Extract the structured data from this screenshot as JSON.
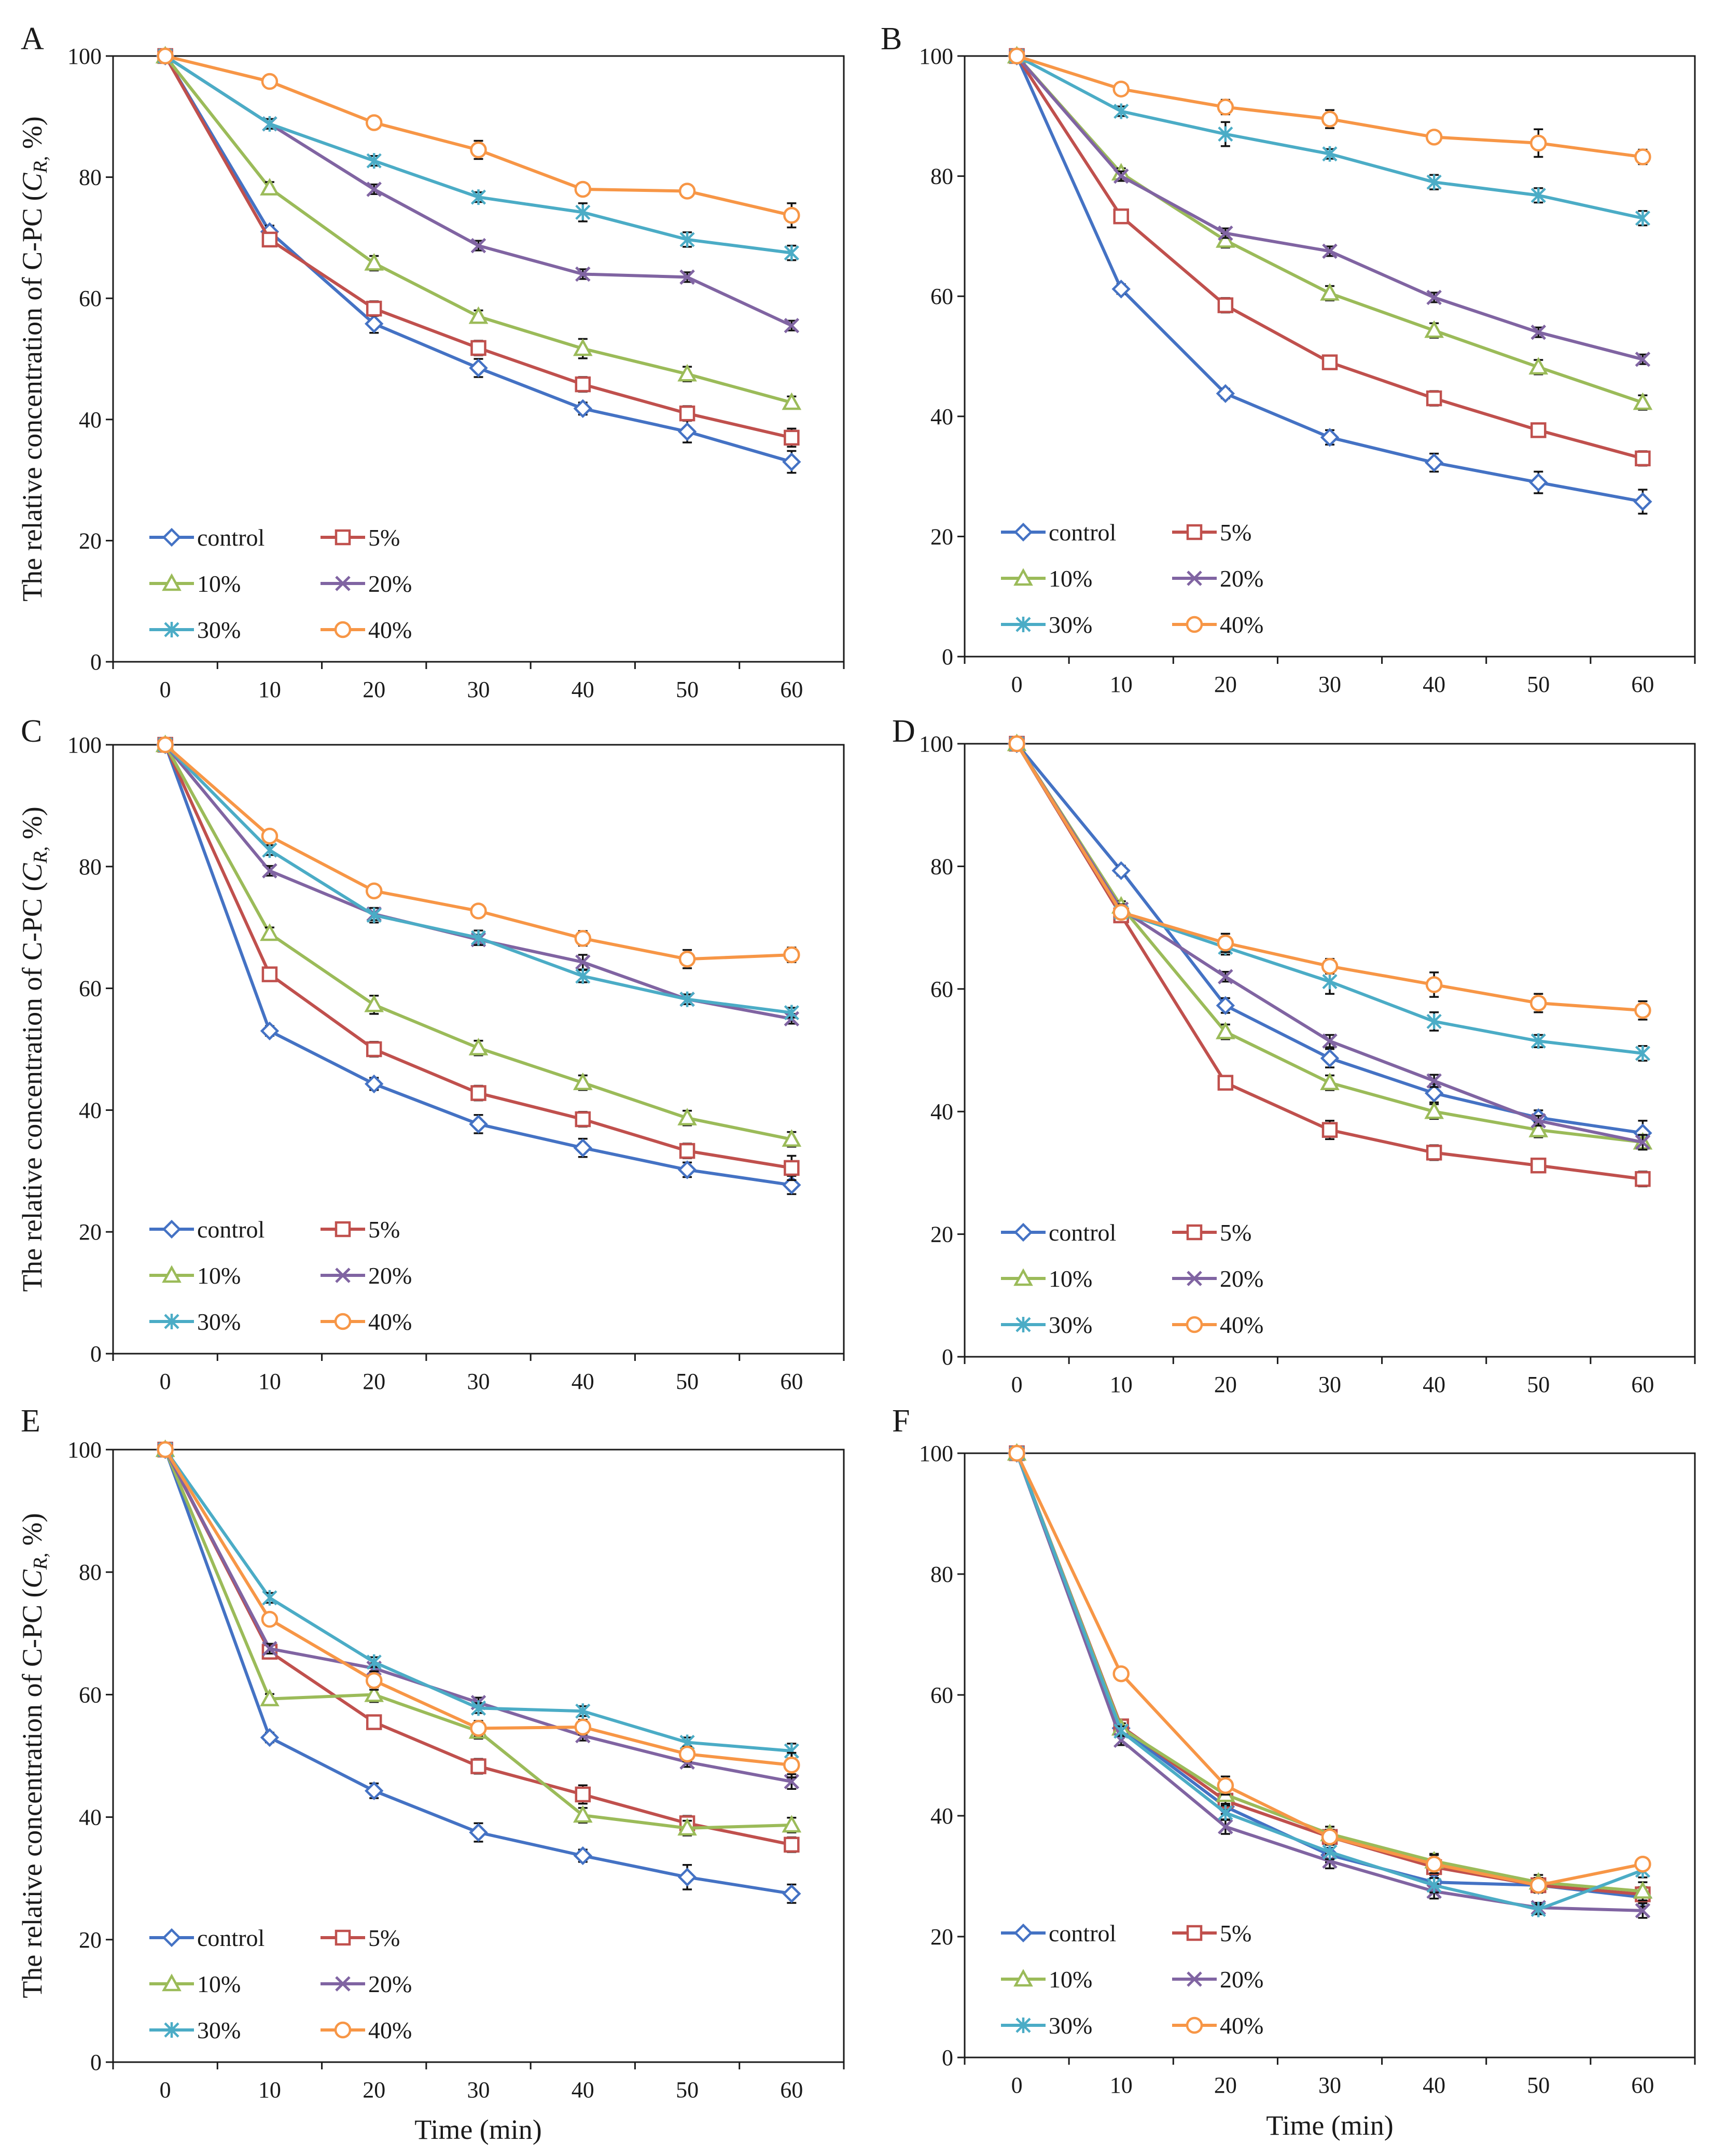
{
  "colors": {
    "control": "#4472c4",
    "p5": "#c0504d",
    "p10": "#9bbb59",
    "p20": "#8064a2",
    "p30": "#4bacc6",
    "p40": "#f79646",
    "axis": "#1a1a1a",
    "error_bar": "#111111"
  },
  "figure": {
    "shared_ylabel": "The relative concentration of C-PC (",
    "shared_ylabel_italic": "C",
    "shared_ylabel_sub": "R,",
    "shared_ylabel_tail": " %)",
    "shared_xlabel": "Time (min)"
  },
  "chart_data": [
    {
      "panel": "A",
      "type": "line",
      "x": [
        0,
        10,
        20,
        30,
        40,
        50,
        60
      ],
      "ylim": [
        0,
        100
      ],
      "yticks": [
        0,
        20,
        40,
        60,
        80,
        100
      ],
      "xlabel": "",
      "ylabel": "The relative concentration of C-PC (C R, %)",
      "legend": "bottom-left",
      "grid": false,
      "series": [
        {
          "key": "control",
          "name": "control",
          "marker": "diamond",
          "values": [
            100,
            71,
            55.8,
            48.5,
            41.8,
            38,
            33
          ],
          "errors": [
            0,
            1,
            1.5,
            1.5,
            1,
            1.8,
            1.8
          ]
        },
        {
          "key": "p5",
          "name": "5%",
          "marker": "square",
          "values": [
            100,
            69.7,
            58.3,
            51.8,
            45.8,
            41,
            37
          ],
          "errors": [
            0,
            1,
            1.2,
            1.2,
            1.2,
            1.2,
            1.5
          ]
        },
        {
          "key": "p10",
          "name": "10%",
          "marker": "triangle",
          "values": [
            100,
            78.2,
            65.8,
            57,
            51.7,
            47.5,
            42.8
          ],
          "errors": [
            0,
            1,
            1.2,
            1,
            1.6,
            1.2,
            1
          ]
        },
        {
          "key": "p20",
          "name": "20%",
          "marker": "x",
          "values": [
            100,
            88.8,
            78,
            68.7,
            64,
            63.5,
            55.5
          ],
          "errors": [
            0,
            0.8,
            0.8,
            0.8,
            0.8,
            0.8,
            0.8
          ]
        },
        {
          "key": "p30",
          "name": "30%",
          "marker": "asterisk",
          "values": [
            100,
            88.8,
            82.7,
            76.7,
            74.2,
            69.7,
            67.5
          ],
          "errors": [
            0,
            0.8,
            0.8,
            0.8,
            1.5,
            1.2,
            1.2
          ]
        },
        {
          "key": "p40",
          "name": "40%",
          "marker": "circle",
          "values": [
            100,
            95.8,
            89,
            84.5,
            78,
            77.7,
            73.7
          ],
          "errors": [
            0,
            0.8,
            0.8,
            1.5,
            0.8,
            0.8,
            2
          ]
        }
      ]
    },
    {
      "panel": "B",
      "type": "line",
      "x": [
        0,
        10,
        20,
        30,
        40,
        50,
        60
      ],
      "ylim": [
        0,
        100
      ],
      "yticks": [
        0,
        20,
        40,
        60,
        80,
        100
      ],
      "xlabel": "",
      "ylabel": "",
      "legend": "bottom-left",
      "grid": false,
      "series": [
        {
          "key": "control",
          "name": "control",
          "marker": "diamond",
          "values": [
            100,
            61.2,
            43.8,
            36.5,
            32.3,
            29,
            25.8
          ],
          "errors": [
            0,
            0.8,
            0.8,
            1.2,
            1.5,
            1.8,
            2
          ]
        },
        {
          "key": "p5",
          "name": "5%",
          "marker": "square",
          "values": [
            100,
            73.3,
            58.5,
            49,
            43,
            37.7,
            33
          ],
          "errors": [
            0,
            0.8,
            1.2,
            1,
            1.2,
            1,
            1.2
          ]
        },
        {
          "key": "p10",
          "name": "10%",
          "marker": "triangle",
          "values": [
            100,
            80.5,
            69.3,
            60.5,
            54.3,
            48.2,
            42.3
          ],
          "errors": [
            0,
            0.8,
            1.2,
            1.2,
            1.2,
            1.2,
            1.2
          ]
        },
        {
          "key": "p20",
          "name": "20%",
          "marker": "x",
          "values": [
            100,
            80,
            70.5,
            67.5,
            59.8,
            54,
            49.5
          ],
          "errors": [
            0,
            0.8,
            0.8,
            0.8,
            0.8,
            0.8,
            0.8
          ]
        },
        {
          "key": "p30",
          "name": "30%",
          "marker": "asterisk",
          "values": [
            100,
            90.8,
            87,
            83.7,
            79,
            76.8,
            73
          ],
          "errors": [
            0,
            0.8,
            2,
            0.8,
            1.2,
            1.2,
            1.2
          ]
        },
        {
          "key": "p40",
          "name": "40%",
          "marker": "circle",
          "values": [
            100,
            94.5,
            91.5,
            89.5,
            86.5,
            85.5,
            83.2
          ],
          "errors": [
            0,
            0.8,
            1.2,
            1.5,
            0.8,
            2.3,
            1.2
          ]
        }
      ]
    },
    {
      "panel": "C",
      "type": "line",
      "x": [
        0,
        10,
        20,
        30,
        40,
        50,
        60
      ],
      "ylim": [
        0,
        100
      ],
      "yticks": [
        0,
        20,
        40,
        60,
        80,
        100
      ],
      "xlabel": "",
      "ylabel": "The relative concentration of C-PC (C R, %)",
      "legend": "bottom-left",
      "grid": false,
      "series": [
        {
          "key": "control",
          "name": "control",
          "marker": "diamond",
          "values": [
            100,
            53,
            44.3,
            37.7,
            33.8,
            30.2,
            27.7
          ],
          "errors": [
            0,
            0.8,
            1,
            1.5,
            1.5,
            1.2,
            1.5
          ]
        },
        {
          "key": "p5",
          "name": "5%",
          "marker": "square",
          "values": [
            100,
            62.3,
            50,
            42.8,
            38.5,
            33.3,
            30.5
          ],
          "errors": [
            0,
            1,
            1.2,
            1.2,
            1.2,
            1.2,
            2
          ]
        },
        {
          "key": "p10",
          "name": "10%",
          "marker": "triangle",
          "values": [
            100,
            69,
            57.3,
            50.2,
            44.5,
            38.7,
            35.2
          ],
          "errors": [
            0,
            1,
            1.5,
            1.2,
            1.2,
            1.2,
            1.2
          ]
        },
        {
          "key": "p20",
          "name": "20%",
          "marker": "x",
          "values": [
            100,
            79.3,
            72.2,
            68,
            64.3,
            58.2,
            55
          ],
          "errors": [
            0,
            0.8,
            1,
            0.8,
            1.2,
            0.8,
            0.8
          ]
        },
        {
          "key": "p30",
          "name": "30%",
          "marker": "asterisk",
          "values": [
            100,
            82.7,
            72,
            68.3,
            62,
            58.2,
            56
          ],
          "errors": [
            0,
            0.8,
            1.2,
            1.2,
            1,
            0.8,
            0.8
          ]
        },
        {
          "key": "p40",
          "name": "40%",
          "marker": "circle",
          "values": [
            100,
            85,
            76,
            72.7,
            68.2,
            64.8,
            65.5
          ],
          "errors": [
            0,
            0.8,
            0.8,
            0.8,
            1.2,
            1.5,
            1.2
          ]
        }
      ]
    },
    {
      "panel": "D",
      "type": "line",
      "x": [
        0,
        10,
        20,
        30,
        40,
        50,
        60
      ],
      "ylim": [
        0,
        100
      ],
      "yticks": [
        0,
        20,
        40,
        60,
        80,
        100
      ],
      "xlabel": "",
      "ylabel": "",
      "legend": "bottom-left",
      "grid": false,
      "series": [
        {
          "key": "control",
          "name": "control",
          "marker": "diamond",
          "values": [
            100,
            79.3,
            57.3,
            48.7,
            43,
            39,
            36.5
          ],
          "errors": [
            0,
            0.8,
            1.2,
            1.5,
            1.5,
            1.2,
            2
          ]
        },
        {
          "key": "p5",
          "name": "5%",
          "marker": "square",
          "values": [
            100,
            72,
            44.7,
            37,
            33.3,
            31.2,
            29
          ],
          "errors": [
            0,
            0.8,
            1,
            1.5,
            1.2,
            1,
            1.2
          ]
        },
        {
          "key": "p10",
          "name": "10%",
          "marker": "triangle",
          "values": [
            100,
            73.5,
            53,
            44.7,
            40,
            37,
            35
          ],
          "errors": [
            0,
            0.8,
            1.2,
            1.2,
            1.2,
            1.2,
            1.2
          ]
        },
        {
          "key": "p20",
          "name": "20%",
          "marker": "x",
          "values": [
            100,
            73,
            62,
            51.5,
            45,
            38.5,
            35
          ],
          "errors": [
            0,
            0.8,
            0.8,
            1,
            1,
            0.8,
            1.2
          ]
        },
        {
          "key": "p30",
          "name": "30%",
          "marker": "asterisk",
          "values": [
            100,
            72.5,
            66.8,
            61.2,
            54.7,
            51.5,
            49.5
          ],
          "errors": [
            0,
            1,
            1.2,
            2,
            1.5,
            1,
            1.2
          ]
        },
        {
          "key": "p40",
          "name": "40%",
          "marker": "circle",
          "values": [
            100,
            72.5,
            67.5,
            63.7,
            60.7,
            57.7,
            56.5
          ],
          "errors": [
            0,
            0.8,
            1.5,
            1.2,
            2,
            1.5,
            1.5
          ]
        }
      ]
    },
    {
      "panel": "E",
      "type": "line",
      "x": [
        0,
        10,
        20,
        30,
        40,
        50,
        60
      ],
      "ylim": [
        0,
        100
      ],
      "yticks": [
        0,
        20,
        40,
        60,
        80,
        100
      ],
      "xlabel": "Time (min)",
      "ylabel": "The relative concentration of C-PC (C R, %)",
      "legend": "bottom-left",
      "grid": false,
      "series": [
        {
          "key": "control",
          "name": "control",
          "marker": "diamond",
          "values": [
            100,
            53,
            44.3,
            37.5,
            33.7,
            30.2,
            27.5
          ],
          "errors": [
            0,
            0.8,
            1.2,
            1.5,
            1,
            2,
            1.5
          ]
        },
        {
          "key": "p5",
          "name": "5%",
          "marker": "square",
          "values": [
            100,
            67,
            55.5,
            48.3,
            43.7,
            39,
            35.5
          ],
          "errors": [
            0,
            0.8,
            1,
            1.2,
            1.5,
            1.2,
            1.2
          ]
        },
        {
          "key": "p10",
          "name": "10%",
          "marker": "triangle",
          "values": [
            100,
            59.3,
            60,
            54,
            40.3,
            38.2,
            38.7
          ],
          "errors": [
            0,
            0.8,
            1.2,
            1.2,
            1.2,
            1.2,
            1.2
          ]
        },
        {
          "key": "p20",
          "name": "20%",
          "marker": "x",
          "values": [
            100,
            67.5,
            64.3,
            58.7,
            53.3,
            49,
            45.8
          ],
          "errors": [
            0,
            0.8,
            0.8,
            0.8,
            0.8,
            0.8,
            1.2
          ]
        },
        {
          "key": "p30",
          "name": "30%",
          "marker": "asterisk",
          "values": [
            100,
            75.8,
            65.3,
            57.8,
            57.3,
            52.2,
            50.8
          ],
          "errors": [
            0,
            0.8,
            0.8,
            0.8,
            0.8,
            0.8,
            1.2
          ]
        },
        {
          "key": "p40",
          "name": "40%",
          "marker": "circle",
          "values": [
            100,
            72.3,
            62.3,
            54.5,
            54.7,
            50.3,
            48.5
          ],
          "errors": [
            0,
            0.8,
            1.5,
            1.2,
            1.2,
            1.2,
            2
          ]
        }
      ]
    },
    {
      "panel": "F",
      "type": "line",
      "x": [
        0,
        10,
        20,
        30,
        40,
        50,
        60
      ],
      "ylim": [
        0,
        100
      ],
      "yticks": [
        0,
        20,
        40,
        60,
        80,
        100
      ],
      "xlabel": "Time (min)",
      "ylabel": "",
      "legend": "bottom-left",
      "grid": false,
      "series": [
        {
          "key": "control",
          "name": "control",
          "marker": "diamond",
          "values": [
            100,
            54.5,
            41.5,
            33.5,
            29,
            28.5,
            26.5
          ],
          "errors": [
            0,
            0.8,
            1.2,
            1.2,
            1.2,
            1.2,
            1.5
          ]
        },
        {
          "key": "p5",
          "name": "5%",
          "marker": "square",
          "values": [
            100,
            54.8,
            42.5,
            36.5,
            31.5,
            28.5,
            27
          ],
          "errors": [
            0,
            0.8,
            1.5,
            1.2,
            1.2,
            1.2,
            1.2
          ]
        },
        {
          "key": "p10",
          "name": "10%",
          "marker": "triangle",
          "values": [
            100,
            54.5,
            43.5,
            37,
            32.5,
            29,
            27.5
          ],
          "errors": [
            0,
            0.8,
            1.5,
            1.2,
            1.2,
            1.2,
            1.5
          ]
        },
        {
          "key": "p20",
          "name": "20%",
          "marker": "x",
          "values": [
            100,
            52.5,
            38.2,
            32.5,
            27.5,
            24.8,
            24.3
          ],
          "errors": [
            0,
            0.8,
            1.2,
            1.2,
            1.2,
            0.8,
            1.2
          ]
        },
        {
          "key": "p30",
          "name": "30%",
          "marker": "asterisk",
          "values": [
            100,
            54,
            40.5,
            34,
            28.5,
            24.5,
            31
          ],
          "errors": [
            0,
            0.8,
            1.2,
            1.2,
            1.2,
            0.8,
            1.2
          ]
        },
        {
          "key": "p40",
          "name": "40%",
          "marker": "circle",
          "values": [
            100,
            63.5,
            45,
            36.5,
            32,
            28.5,
            32
          ],
          "errors": [
            0,
            0.8,
            1.5,
            1.2,
            1.5,
            1.2,
            1
          ]
        }
      ]
    }
  ]
}
